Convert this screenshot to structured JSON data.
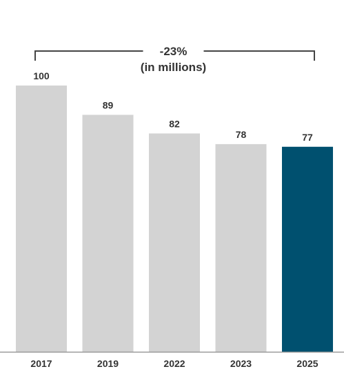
{
  "chart_data": {
    "type": "bar",
    "categories": [
      "2017",
      "2019",
      "2022",
      "2023",
      "2025"
    ],
    "values": [
      100,
      89,
      82,
      78,
      77
    ],
    "value_labels": [
      "100",
      "89",
      "82",
      "78",
      "77"
    ],
    "title": "",
    "xlabel": "",
    "ylabel": "",
    "ylim": [
      0,
      100
    ],
    "grid": false,
    "annotation": {
      "line1": "-23%",
      "line2": "(in millions)",
      "from_category": "2017",
      "to_category": "2025"
    },
    "colors": {
      "default_bar": "#d3d3d3",
      "highlight_bar": "#00506f",
      "axis": "#999999",
      "bracket": "#444444"
    },
    "highlight_category": "2025"
  }
}
